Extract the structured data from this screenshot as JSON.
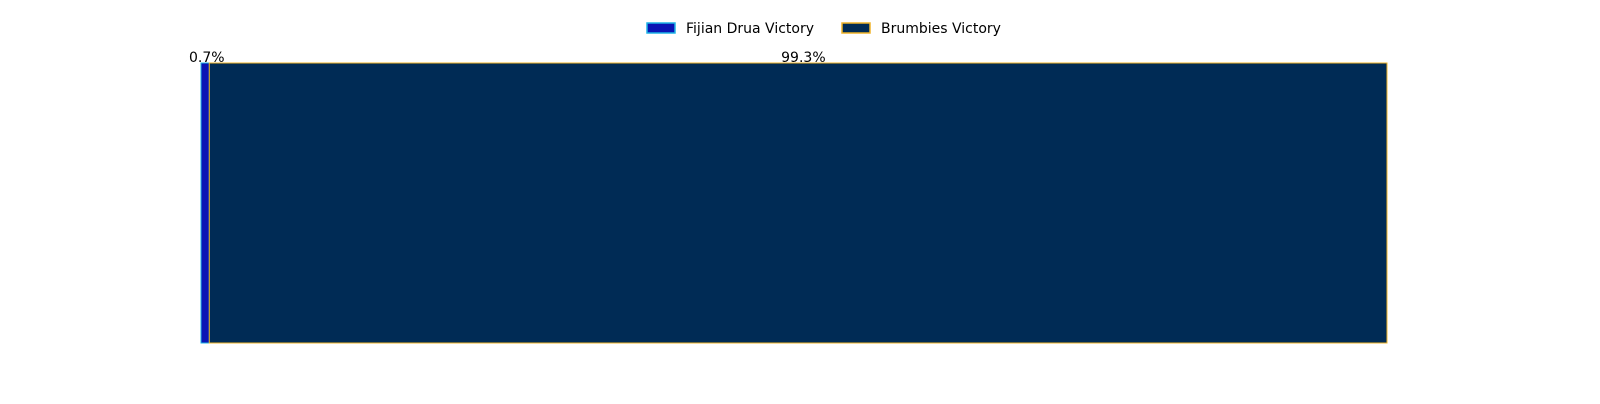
{
  "chart_data": {
    "type": "bar",
    "orientation": "horizontal",
    "stacked": true,
    "normalized": true,
    "title": "",
    "xlabel": "",
    "ylabel": "",
    "xlim": [
      0,
      100
    ],
    "grid": false,
    "axes_visible": false,
    "legend_placement": "top-center",
    "series": [
      {
        "name": "Fijian Drua Victory",
        "values": [
          0.7
        ],
        "label": "0.7%",
        "color": "#0A14B4",
        "edge_color": "#1EB4E6"
      },
      {
        "name": "Brumbies Victory",
        "values": [
          99.3
        ],
        "label": "99.3%",
        "color": "#002B55",
        "edge_color": "#F0B428"
      }
    ]
  }
}
